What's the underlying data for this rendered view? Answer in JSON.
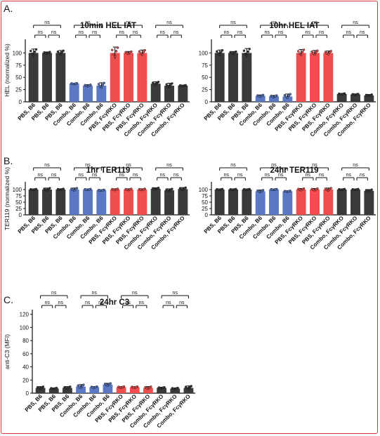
{
  "panels": [
    {
      "letter": "A.",
      "ylabel": "HEL (normalized %)"
    },
    {
      "letter": "B.",
      "ylabel": "TER119 (normalized %)"
    },
    {
      "letter": "C.",
      "ylabel": "anti-C3 (MFI)"
    }
  ],
  "colors": {
    "black_group": "#3a3a3a",
    "blue_group": "#5a78c4",
    "red_group": "#ee4e4e",
    "border": "#d9383d"
  },
  "chart_data": [
    {
      "type": "bar",
      "title": "10min HEL IAT",
      "panel": "A.",
      "ylabel": "HEL (normalized %)",
      "ylim": [
        0,
        125
      ],
      "yticks": [
        "0",
        "25",
        "50",
        "75",
        "100"
      ],
      "categories": [
        "PBS, B6",
        "PBS, B6",
        "PBS, B6",
        "Combo, B6",
        "Combo, B6",
        "Combo, B6",
        "PBS, FcγRKO",
        "PBS, FcγRKO",
        "PBS, FcγRKO",
        "Combo, FcγRKO",
        "Combo, FcγRKO",
        "Combo, FcγRKO"
      ],
      "values": [
        100,
        100,
        100,
        37,
        33,
        33,
        100,
        100,
        100,
        37,
        33,
        33
      ],
      "errors": [
        8,
        2,
        5,
        1,
        2,
        6,
        12,
        3,
        6,
        4,
        5,
        1
      ],
      "brackets": [
        "ns",
        "ns",
        "ns",
        "ns",
        "ns",
        "ns",
        "ns",
        "ns",
        "ns",
        "ns",
        "ns",
        "ns"
      ]
    },
    {
      "type": "bar",
      "title": "10hr HEL IAT",
      "ylim": [
        0,
        125
      ],
      "yticks": [
        "0",
        "25",
        "50",
        "75",
        "100"
      ],
      "categories": [
        "PBS, B6",
        "PBS, B6",
        "PBS, B6",
        "Combo, B6",
        "Combo, B6",
        "Combo, B6",
        "PBS, FcγRKO",
        "PBS, FcγRKO",
        "PBS, FcγRKO",
        "Combo, FcγRKO",
        "Combo, FcγRKO",
        "Combo, FcγRKO"
      ],
      "values": [
        100,
        100,
        100,
        12,
        11,
        11,
        100,
        100,
        100,
        16,
        15,
        13
      ],
      "errors": [
        6,
        3,
        9,
        2,
        2,
        5,
        7,
        5,
        4,
        1,
        1,
        2
      ],
      "brackets": [
        "ns",
        "ns",
        "ns",
        "ns",
        "ns",
        "ns",
        "ns",
        "ns",
        "ns",
        "ns",
        "ns",
        "ns"
      ]
    },
    {
      "type": "bar",
      "title": "1hr TER119",
      "panel": "B.",
      "ylabel": "TER119 (normalized %)",
      "ylim": [
        0,
        125
      ],
      "yticks": [
        "0",
        "25",
        "50",
        "75",
        "100"
      ],
      "categories": [
        "PBS, B6",
        "PBS, B6",
        "PBS, B6",
        "Combo, B6",
        "Combo, B6",
        "Combo, B6",
        "PBS, FcγRKO",
        "PBS, FcγRKO",
        "PBS, FcγRKO",
        "Combo, FcγRKO",
        "Combo, FcγRKO",
        "Combo, FcγRKO"
      ],
      "values": [
        100,
        100,
        100,
        100,
        100,
        97,
        100,
        100,
        100,
        103,
        97,
        102
      ],
      "errors": [
        2,
        6,
        3,
        6,
        2,
        2,
        3,
        3,
        3,
        4,
        6,
        6
      ],
      "brackets": [
        "ns",
        "ns",
        "ns",
        "ns",
        "ns",
        "ns",
        "ns",
        "ns",
        "ns",
        "ns",
        "ns",
        "ns"
      ]
    },
    {
      "type": "bar",
      "title": "24hr TER119",
      "ylim": [
        0,
        125
      ],
      "yticks": [
        "0",
        "25",
        "50",
        "75",
        "100"
      ],
      "categories": [
        "PBS, B6",
        "PBS, B6",
        "PBS, B6",
        "Combo, B6",
        "Combo, B6",
        "Combo, B6",
        "PBS, FcγRKO",
        "PBS, FcγRKO",
        "PBS, FcγRKO",
        "Combo, FcγRKO",
        "Combo, FcγRKO",
        "Combo, FcγRKO"
      ],
      "values": [
        100,
        100,
        100,
        93,
        100,
        93,
        100,
        100,
        100,
        100,
        100,
        95
      ],
      "errors": [
        2,
        2,
        2,
        5,
        2,
        2,
        4,
        4,
        6,
        2,
        2,
        5
      ],
      "brackets": [
        "ns",
        "ns",
        "ns",
        "ns",
        "ns",
        "ns",
        "ns",
        "ns",
        "ns",
        "ns",
        "ns",
        "ns"
      ]
    },
    {
      "type": "bar",
      "title": "24hr C3",
      "panel": "C.",
      "ylabel": "anti-C3 (MFI)",
      "ylim": [
        0,
        125
      ],
      "yticks": [
        "0",
        "20",
        "40",
        "60",
        "80",
        "100",
        "120"
      ],
      "categories": [
        "PBS, B6",
        "PBS, B6",
        "PBS, B6",
        "Combo, B6",
        "Combo, B6",
        "Combo, B6",
        "PBS, FcγRKO",
        "PBS, FcγRKO",
        "PBS, FcγRKO",
        "Combo, FcγRKO",
        "Combo, FcγRKO",
        "Combo, FcγRKO"
      ],
      "values": [
        8,
        7,
        8,
        10,
        9,
        13,
        9,
        9,
        8,
        8,
        7,
        8
      ],
      "errors": [
        2,
        1,
        2,
        3,
        1,
        2,
        1,
        1,
        2,
        1,
        1,
        3
      ],
      "brackets": [
        "ns",
        "ns",
        "ns",
        "ns",
        "ns",
        "ns",
        "ns",
        "ns",
        "ns",
        "ns",
        "ns",
        "ns"
      ]
    }
  ]
}
